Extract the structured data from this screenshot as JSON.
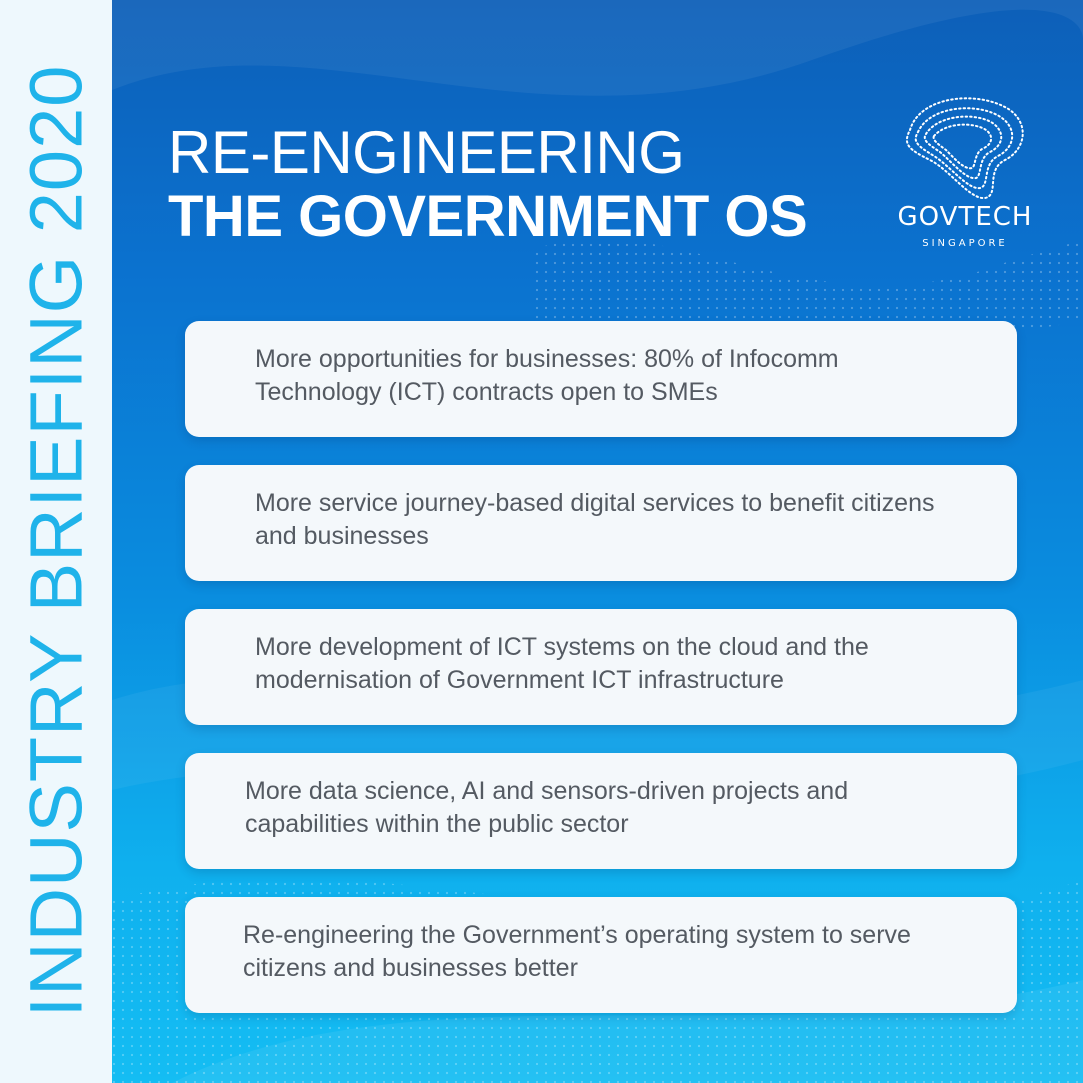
{
  "sidebar": {
    "label": "INDUSTRY BRIEFING 2020"
  },
  "header": {
    "title_line1": "RE-ENGINEERING",
    "title_line2": "THE GOVERNMENT OS"
  },
  "logo": {
    "name": "GOVTECH",
    "subtitle": "SINGAPORE"
  },
  "cards": [
    {
      "text": "More opportunities for businesses: 80% of Infocomm Technology (ICT) contracts open to SMEs"
    },
    {
      "text": "More service journey-based digital services to benefit citizens and businesses"
    },
    {
      "text": "More development of ICT systems on the cloud and the modernisation of Government ICT infrastructure"
    },
    {
      "text": "More data science, AI and sensors-driven projects and capabilities within the public sector"
    },
    {
      "text": "Re-engineering the Government’s operating system to serve citizens and businesses better"
    }
  ],
  "colors": {
    "sidebar_bg": "#eef8fd",
    "sidebar_text": "#1fb3ea",
    "bg_top": "#0d5fb8",
    "bg_bottom": "#14bdf3",
    "card_bg": "#f4f8fb",
    "card_text": "#545a62"
  }
}
